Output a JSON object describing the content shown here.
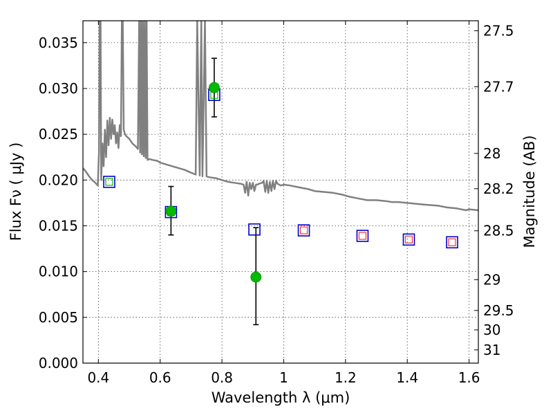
{
  "chart_data": {
    "type": "scatter",
    "title": "",
    "xlabel": "Wavelength  λ (μm)",
    "ylabel": "Flux  Fν  ( μJy )",
    "ylabel_right": "Magnitude (AB)",
    "xlim": [
      0.35,
      1.63
    ],
    "ylim": [
      0.0,
      0.0374
    ],
    "grid": true,
    "x_ticks": [
      "0.4",
      "0.6",
      "0.8",
      "1",
      "1.2",
      "1.4",
      "1.6"
    ],
    "y_ticks": [
      "0.000",
      "0.005",
      "0.010",
      "0.015",
      "0.020",
      "0.025",
      "0.030",
      "0.035"
    ],
    "right_ticks": [
      {
        "label": "27.5",
        "value": 27.5
      },
      {
        "label": "27.7",
        "value": 27.7
      },
      {
        "label": "28",
        "value": 28.0
      },
      {
        "label": "28.2",
        "value": 28.2
      },
      {
        "label": "28.5",
        "value": 28.5
      },
      {
        "label": "29",
        "value": 29.0
      },
      {
        "label": "29.5",
        "value": 29.5
      },
      {
        "label": "30",
        "value": 30.0
      },
      {
        "label": "31",
        "value": 31.0
      }
    ],
    "colors": {
      "model": "#808080",
      "observed": "#00bb00",
      "observed_edge": "#008800",
      "model_box": "#0000cc",
      "model_inner": "#ff3333",
      "error": "#000000"
    },
    "series": [
      {
        "kind": "model_spectrum",
        "points": [
          [
            0.35,
            0.0213
          ],
          [
            0.36,
            0.0209
          ],
          [
            0.37,
            0.0204
          ],
          [
            0.38,
            0.02
          ],
          [
            0.39,
            0.0197
          ],
          [
            0.398,
            0.0194
          ],
          [
            0.402,
            0.023
          ],
          [
            0.404,
            0.0374
          ],
          [
            0.407,
            0.0374
          ],
          [
            0.409,
            0.02
          ],
          [
            0.413,
            0.024
          ],
          [
            0.417,
            0.0215
          ],
          [
            0.421,
            0.0255
          ],
          [
            0.425,
            0.0225
          ],
          [
            0.429,
            0.0265
          ],
          [
            0.433,
            0.0238
          ],
          [
            0.437,
            0.0268
          ],
          [
            0.441,
            0.0245
          ],
          [
            0.445,
            0.0266
          ],
          [
            0.449,
            0.025
          ],
          [
            0.453,
            0.026
          ],
          [
            0.457,
            0.024
          ],
          [
            0.461,
            0.0252
          ],
          [
            0.465,
            0.0235
          ],
          [
            0.469,
            0.026
          ],
          [
            0.473,
            0.0248
          ],
          [
            0.476,
            0.0374
          ],
          [
            0.479,
            0.0374
          ],
          [
            0.482,
            0.0255
          ],
          [
            0.486,
            0.025
          ],
          [
            0.49,
            0.0248
          ],
          [
            0.5,
            0.0245
          ],
          [
            0.51,
            0.024
          ],
          [
            0.52,
            0.0237
          ],
          [
            0.528,
            0.0234
          ],
          [
            0.532,
            0.0374
          ],
          [
            0.535,
            0.023
          ],
          [
            0.538,
            0.0374
          ],
          [
            0.541,
            0.0228
          ],
          [
            0.544,
            0.0374
          ],
          [
            0.547,
            0.0226
          ],
          [
            0.55,
            0.0374
          ],
          [
            0.553,
            0.0224
          ],
          [
            0.556,
            0.0374
          ],
          [
            0.559,
            0.0222
          ],
          [
            0.565,
            0.0223
          ],
          [
            0.575,
            0.0222
          ],
          [
            0.59,
            0.0221
          ],
          [
            0.6,
            0.0219
          ],
          [
            0.62,
            0.0217
          ],
          [
            0.64,
            0.0215
          ],
          [
            0.66,
            0.0213
          ],
          [
            0.68,
            0.0211
          ],
          [
            0.7,
            0.0208
          ],
          [
            0.715,
            0.0206
          ],
          [
            0.72,
            0.0374
          ],
          [
            0.728,
            0.0205
          ],
          [
            0.733,
            0.0374
          ],
          [
            0.737,
            0.0204
          ],
          [
            0.745,
            0.0374
          ],
          [
            0.75,
            0.0204
          ],
          [
            0.76,
            0.0203
          ],
          [
            0.78,
            0.0202
          ],
          [
            0.8,
            0.02
          ],
          [
            0.82,
            0.0198
          ],
          [
            0.84,
            0.0197
          ],
          [
            0.86,
            0.0196
          ],
          [
            0.87,
            0.0195
          ],
          [
            0.875,
            0.0186
          ],
          [
            0.88,
            0.0198
          ],
          [
            0.885,
            0.0183
          ],
          [
            0.89,
            0.0197
          ],
          [
            0.895,
            0.019
          ],
          [
            0.9,
            0.0197
          ],
          [
            0.905,
            0.0188
          ],
          [
            0.91,
            0.0195
          ],
          [
            0.915,
            0.0195
          ],
          [
            0.92,
            0.0196
          ],
          [
            0.93,
            0.0197
          ],
          [
            0.935,
            0.0199
          ],
          [
            0.94,
            0.0187
          ],
          [
            0.945,
            0.0199
          ],
          [
            0.95,
            0.0186
          ],
          [
            0.955,
            0.0198
          ],
          [
            0.96,
            0.0188
          ],
          [
            0.965,
            0.0199
          ],
          [
            0.97,
            0.019
          ],
          [
            0.975,
            0.0199
          ],
          [
            0.98,
            0.0196
          ],
          [
            0.99,
            0.0194
          ],
          [
            1.0,
            0.0195
          ],
          [
            1.02,
            0.0194
          ],
          [
            1.05,
            0.0192
          ],
          [
            1.08,
            0.019
          ],
          [
            1.1,
            0.0188
          ],
          [
            1.13,
            0.0187
          ],
          [
            1.16,
            0.0186
          ],
          [
            1.19,
            0.0184
          ],
          [
            1.21,
            0.0182
          ],
          [
            1.24,
            0.018
          ],
          [
            1.27,
            0.0178
          ],
          [
            1.3,
            0.0178
          ],
          [
            1.33,
            0.0177
          ],
          [
            1.35,
            0.0176
          ],
          [
            1.37,
            0.0176
          ],
          [
            1.4,
            0.0175
          ],
          [
            1.43,
            0.0174
          ],
          [
            1.46,
            0.0173
          ],
          [
            1.5,
            0.0172
          ],
          [
            1.53,
            0.017
          ],
          [
            1.56,
            0.0169
          ],
          [
            1.59,
            0.0167
          ],
          [
            1.6,
            0.0168
          ],
          [
            1.63,
            0.0167
          ]
        ]
      },
      {
        "kind": "model_photometry",
        "points": [
          {
            "x": 0.435,
            "y": 0.0198,
            "band": "blue-green"
          },
          {
            "x": 0.635,
            "y": 0.0165,
            "band": "blue-green"
          },
          {
            "x": 0.775,
            "y": 0.0293,
            "band": "blue-green"
          },
          {
            "x": 0.905,
            "y": 0.0146,
            "band": "blue"
          },
          {
            "x": 1.065,
            "y": 0.0145,
            "band": "blue-red"
          },
          {
            "x": 1.255,
            "y": 0.0139,
            "band": "blue-red"
          },
          {
            "x": 1.405,
            "y": 0.0135,
            "band": "blue-red"
          },
          {
            "x": 1.545,
            "y": 0.0132,
            "band": "blue-red"
          }
        ]
      },
      {
        "kind": "observed",
        "points": [
          {
            "x": 0.635,
            "y": 0.0166,
            "yerr_low": 0.014,
            "yerr_high": 0.0193
          },
          {
            "x": 0.775,
            "y": 0.0301,
            "yerr_low": 0.0269,
            "yerr_high": 0.0333
          },
          {
            "x": 0.91,
            "y": 0.0094,
            "yerr_low": 0.0042,
            "yerr_high": 0.0148
          }
        ]
      }
    ]
  }
}
